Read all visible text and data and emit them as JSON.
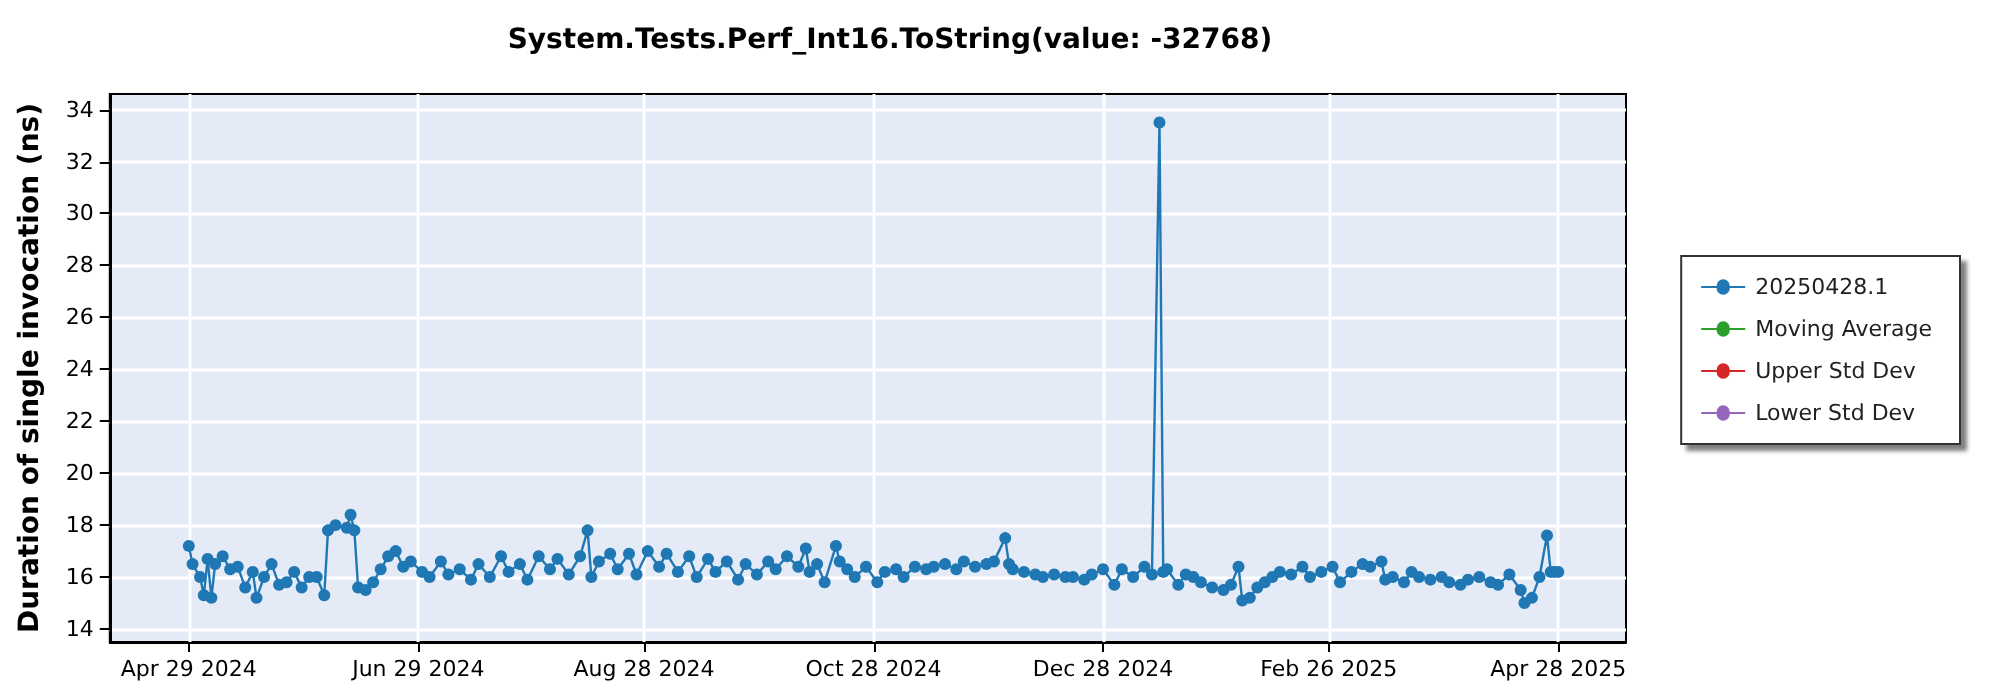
{
  "chart_data": {
    "type": "line",
    "title": "System.Tests.Perf_Int16.ToString(value: -32768)",
    "ylabel": "Duration of single invocation (ns)",
    "xlim": [
      "2024-04-08",
      "2025-05-16"
    ],
    "ylim": [
      13.5,
      34.6
    ],
    "xticks": [
      {
        "value": "2024-04-29",
        "label": "Apr 29 2024"
      },
      {
        "value": "2024-06-29",
        "label": "Jun 29 2024"
      },
      {
        "value": "2024-08-28",
        "label": "Aug 28 2024"
      },
      {
        "value": "2024-10-28",
        "label": "Oct 28 2024"
      },
      {
        "value": "2024-12-28",
        "label": "Dec 28 2024"
      },
      {
        "value": "2025-02-26",
        "label": "Feb 26 2025"
      },
      {
        "value": "2025-04-28",
        "label": "Apr 28 2025"
      }
    ],
    "yticks": [
      14,
      16,
      18,
      20,
      22,
      24,
      26,
      28,
      30,
      32,
      34
    ],
    "grid": true,
    "legend": "right",
    "marker": "circle",
    "line_style": "solid",
    "series": [
      {
        "name": "20250428.1",
        "color": "#1f77b4",
        "x": [
          "2024-04-29",
          "2024-04-30",
          "2024-05-02",
          "2024-05-03",
          "2024-05-04",
          "2024-05-05",
          "2024-05-06",
          "2024-05-08",
          "2024-05-10",
          "2024-05-12",
          "2024-05-14",
          "2024-05-16",
          "2024-05-17",
          "2024-05-19",
          "2024-05-21",
          "2024-05-23",
          "2024-05-25",
          "2024-05-27",
          "2024-05-29",
          "2024-05-31",
          "2024-06-02",
          "2024-06-04",
          "2024-06-05",
          "2024-06-07",
          "2024-06-10",
          "2024-06-11",
          "2024-06-12",
          "2024-06-13",
          "2024-06-15",
          "2024-06-17",
          "2024-06-19",
          "2024-06-21",
          "2024-06-23",
          "2024-06-25",
          "2024-06-27",
          "2024-06-30",
          "2024-07-02",
          "2024-07-05",
          "2024-07-07",
          "2024-07-10",
          "2024-07-13",
          "2024-07-15",
          "2024-07-18",
          "2024-07-21",
          "2024-07-23",
          "2024-07-26",
          "2024-07-28",
          "2024-07-31",
          "2024-08-03",
          "2024-08-05",
          "2024-08-08",
          "2024-08-11",
          "2024-08-13",
          "2024-08-14",
          "2024-08-16",
          "2024-08-19",
          "2024-08-21",
          "2024-08-24",
          "2024-08-26",
          "2024-08-29",
          "2024-09-01",
          "2024-09-03",
          "2024-09-06",
          "2024-09-09",
          "2024-09-11",
          "2024-09-14",
          "2024-09-16",
          "2024-09-19",
          "2024-09-22",
          "2024-09-24",
          "2024-09-27",
          "2024-09-30",
          "2024-10-02",
          "2024-10-05",
          "2024-10-08",
          "2024-10-10",
          "2024-10-11",
          "2024-10-13",
          "2024-10-15",
          "2024-10-18",
          "2024-10-19",
          "2024-10-21",
          "2024-10-23",
          "2024-10-26",
          "2024-10-29",
          "2024-10-31",
          "2024-11-03",
          "2024-11-05",
          "2024-11-08",
          "2024-11-11",
          "2024-11-13",
          "2024-11-16",
          "2024-11-19",
          "2024-11-21",
          "2024-11-24",
          "2024-11-27",
          "2024-11-29",
          "2024-12-02",
          "2024-12-03",
          "2024-12-04",
          "2024-12-07",
          "2024-12-10",
          "2024-12-12",
          "2024-12-15",
          "2024-12-18",
          "2024-12-20",
          "2024-12-23",
          "2024-12-25",
          "2024-12-28",
          "2024-12-31",
          "2025-01-02",
          "2025-01-05",
          "2025-01-08",
          "2025-01-10",
          "2025-01-12",
          "2025-01-13",
          "2025-01-14",
          "2025-01-17",
          "2025-01-19",
          "2025-01-21",
          "2025-01-23",
          "2025-01-26",
          "2025-01-29",
          "2025-01-31",
          "2025-02-02",
          "2025-02-03",
          "2025-02-05",
          "2025-02-07",
          "2025-02-09",
          "2025-02-11",
          "2025-02-13",
          "2025-02-16",
          "2025-02-19",
          "2025-02-21",
          "2025-02-24",
          "2025-02-27",
          "2025-03-01",
          "2025-03-04",
          "2025-03-07",
          "2025-03-09",
          "2025-03-12",
          "2025-03-13",
          "2025-03-15",
          "2025-03-18",
          "2025-03-20",
          "2025-03-22",
          "2025-03-25",
          "2025-03-28",
          "2025-03-30",
          "2025-04-02",
          "2025-04-04",
          "2025-04-07",
          "2025-04-10",
          "2025-04-12",
          "2025-04-15",
          "2025-04-18",
          "2025-04-19",
          "2025-04-21",
          "2025-04-23",
          "2025-04-25",
          "2025-04-26",
          "2025-04-27",
          "2025-04-28"
        ],
        "values": [
          17.2,
          16.5,
          16.0,
          15.3,
          16.7,
          15.2,
          16.5,
          16.8,
          16.3,
          16.4,
          15.6,
          16.2,
          15.2,
          16.0,
          16.5,
          15.7,
          15.8,
          16.2,
          15.6,
          16.0,
          16.0,
          15.3,
          17.8,
          18.0,
          17.9,
          18.4,
          17.8,
          15.6,
          15.5,
          15.8,
          16.3,
          16.8,
          17.0,
          16.4,
          16.6,
          16.2,
          16.0,
          16.6,
          16.1,
          16.3,
          15.9,
          16.5,
          16.0,
          16.8,
          16.2,
          16.5,
          15.9,
          16.8,
          16.3,
          16.7,
          16.1,
          16.8,
          17.8,
          16.0,
          16.6,
          16.9,
          16.3,
          16.9,
          16.1,
          17.0,
          16.4,
          16.9,
          16.2,
          16.8,
          16.0,
          16.7,
          16.2,
          16.6,
          15.9,
          16.5,
          16.1,
          16.6,
          16.3,
          16.8,
          16.4,
          17.1,
          16.2,
          16.5,
          15.8,
          17.2,
          16.6,
          16.3,
          16.0,
          16.4,
          15.8,
          16.2,
          16.3,
          16.0,
          16.4,
          16.3,
          16.4,
          16.5,
          16.3,
          16.6,
          16.4,
          16.5,
          16.6,
          17.5,
          16.5,
          16.3,
          16.2,
          16.1,
          16.0,
          16.1,
          16.0,
          16.0,
          15.9,
          16.1,
          16.3,
          15.7,
          16.3,
          16.0,
          16.4,
          16.1,
          33.5,
          16.2,
          16.3,
          15.7,
          16.1,
          16.0,
          15.8,
          15.6,
          15.5,
          15.7,
          16.4,
          15.1,
          15.2,
          15.6,
          15.8,
          16.0,
          16.2,
          16.1,
          16.4,
          16.0,
          16.2,
          16.4,
          15.8,
          16.2,
          16.5,
          16.4,
          16.6,
          15.9,
          16.0,
          15.8,
          16.2,
          16.0,
          15.9,
          16.0,
          15.8,
          15.7,
          15.9,
          16.0,
          15.8,
          15.7,
          16.1,
          15.5,
          15.0,
          15.2,
          16.0,
          17.6,
          16.2,
          16.2,
          16.2
        ]
      },
      {
        "name": "Moving Average",
        "color": "#2ca02c"
      },
      {
        "name": "Upper Std Dev",
        "color": "#d62728"
      },
      {
        "name": "Lower Std Dev",
        "color": "#9467bd"
      }
    ]
  }
}
